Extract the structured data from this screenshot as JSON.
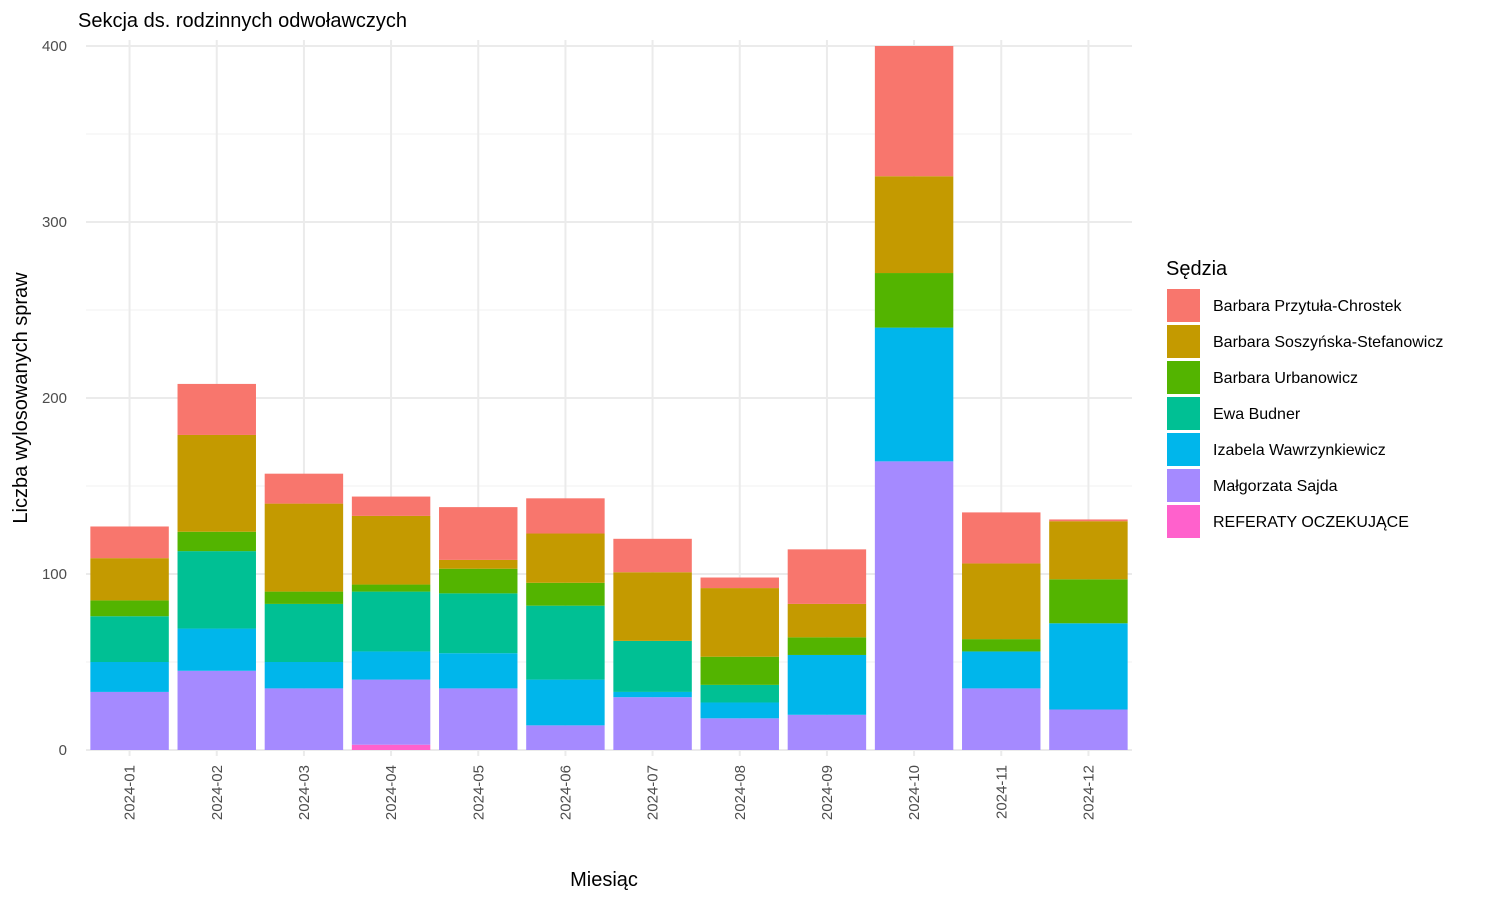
{
  "chart_data": {
    "type": "bar",
    "stacked": true,
    "title": "Sekcja ds. rodzinnych odwoławczych",
    "xlabel": "Miesiąc",
    "ylabel": "Liczba wylosowanych spraw",
    "ylim": [
      0,
      400
    ],
    "yticks": [
      0,
      100,
      200,
      300,
      400
    ],
    "grid": true,
    "legend_title": "Sędzia",
    "legend_position": "right",
    "categories": [
      "2024-01",
      "2024-02",
      "2024-03",
      "2024-04",
      "2024-05",
      "2024-06",
      "2024-07",
      "2024-08",
      "2024-09",
      "2024-10",
      "2024-11",
      "2024-12"
    ],
    "series": [
      {
        "name": "REFERATY OCZEKUJĄCE",
        "color": "#FF61CC",
        "values": [
          0,
          0,
          0,
          3,
          0,
          0,
          0,
          0,
          0,
          0,
          0,
          0
        ]
      },
      {
        "name": "Małgorzata Sajda",
        "color": "#A58AFF",
        "values": [
          33,
          45,
          35,
          37,
          35,
          14,
          30,
          18,
          20,
          164,
          35,
          23
        ]
      },
      {
        "name": "Izabela Wawrzynkiewicz",
        "color": "#00B6EB",
        "values": [
          17,
          24,
          15,
          16,
          20,
          26,
          3,
          9,
          34,
          76,
          21,
          49
        ]
      },
      {
        "name": "Ewa Budner",
        "color": "#00C094",
        "values": [
          26,
          44,
          33,
          34,
          34,
          42,
          29,
          10,
          0,
          0,
          0,
          0
        ]
      },
      {
        "name": "Barbara Urbanowicz",
        "color": "#53B400",
        "values": [
          9,
          11,
          7,
          4,
          14,
          13,
          0,
          16,
          10,
          31,
          7,
          25
        ]
      },
      {
        "name": "Barbara Soszyńska-Stefanowicz",
        "color": "#C49A00",
        "values": [
          24,
          55,
          50,
          39,
          5,
          28,
          39,
          39,
          19,
          55,
          43,
          33
        ]
      },
      {
        "name": "Barbara Przytuła-Chrostek",
        "color": "#F8766D",
        "values": [
          18,
          29,
          17,
          11,
          30,
          20,
          19,
          6,
          31,
          74,
          29,
          1
        ]
      }
    ],
    "legend_order": [
      "Barbara Przytuła-Chrostek",
      "Barbara Soszyńska-Stefanowicz",
      "Barbara Urbanowicz",
      "Ewa Budner",
      "Izabela Wawrzynkiewicz",
      "Małgorzata Sajda",
      "REFERATY OCZEKUJĄCE"
    ]
  }
}
